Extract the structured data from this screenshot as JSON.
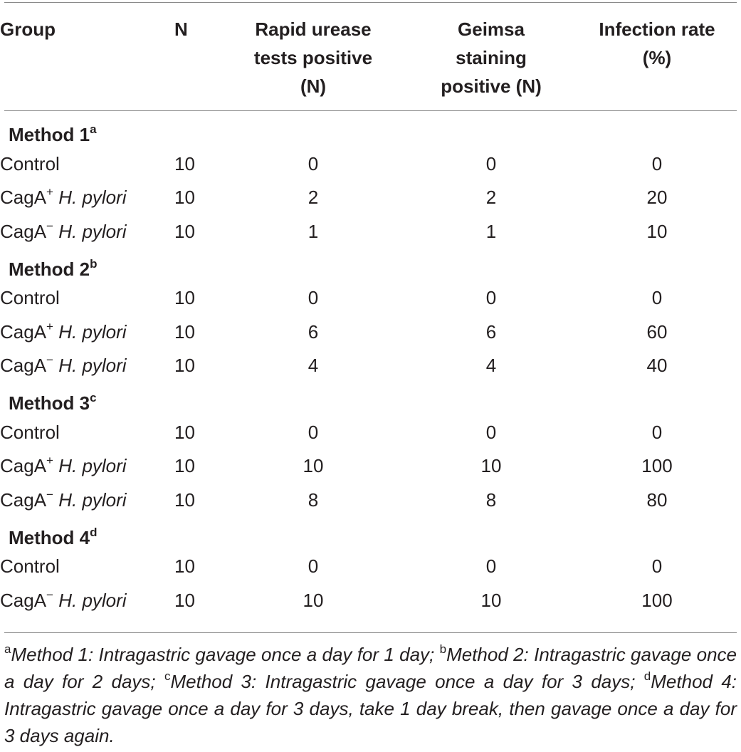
{
  "table": {
    "headers": {
      "group": "Group",
      "n": "N",
      "urease": [
        "Rapid urease",
        "tests positive",
        "(N)"
      ],
      "geimsa": [
        "Geimsa",
        "staining",
        "positive (N)"
      ],
      "rate": [
        "Infection rate",
        "(%)"
      ]
    },
    "sections": [
      {
        "title": "Method 1",
        "sup": "a",
        "rows": [
          {
            "group_base": "Control",
            "group_sup": "",
            "group_strain": "",
            "n": "10",
            "urease": "0",
            "geimsa": "0",
            "rate": "0"
          },
          {
            "group_base": "CagA",
            "group_sup": "+",
            "group_strain": "H. pylori",
            "n": "10",
            "urease": "2",
            "geimsa": "2",
            "rate": "20"
          },
          {
            "group_base": "CagA",
            "group_sup": "−",
            "group_strain": "H. pylori",
            "n": "10",
            "urease": "1",
            "geimsa": "1",
            "rate": "10"
          }
        ]
      },
      {
        "title": "Method 2",
        "sup": "b",
        "rows": [
          {
            "group_base": "Control",
            "group_sup": "",
            "group_strain": "",
            "n": "10",
            "urease": "0",
            "geimsa": "0",
            "rate": "0"
          },
          {
            "group_base": "CagA",
            "group_sup": "+",
            "group_strain": "H. pylori",
            "n": "10",
            "urease": "6",
            "geimsa": "6",
            "rate": "60"
          },
          {
            "group_base": "CagA",
            "group_sup": "−",
            "group_strain": "H. pylori",
            "n": "10",
            "urease": "4",
            "geimsa": "4",
            "rate": "40"
          }
        ]
      },
      {
        "title": "Method 3",
        "sup": "c",
        "rows": [
          {
            "group_base": "Control",
            "group_sup": "",
            "group_strain": "",
            "n": "10",
            "urease": "0",
            "geimsa": "0",
            "rate": "0"
          },
          {
            "group_base": "CagA",
            "group_sup": "+",
            "group_strain": "H. pylori",
            "n": "10",
            "urease": "10",
            "geimsa": "10",
            "rate": "100"
          },
          {
            "group_base": "CagA",
            "group_sup": "−",
            "group_strain": "H. pylori",
            "n": "10",
            "urease": "8",
            "geimsa": "8",
            "rate": "80"
          }
        ]
      },
      {
        "title": "Method 4",
        "sup": "d",
        "rows": [
          {
            "group_base": "Control",
            "group_sup": "",
            "group_strain": "",
            "n": "10",
            "urease": "0",
            "geimsa": "0",
            "rate": "0"
          },
          {
            "group_base": "CagA",
            "group_sup": "−",
            "group_strain": "H. pylori",
            "n": "10",
            "urease": "10",
            "geimsa": "10",
            "rate": "100"
          }
        ]
      }
    ]
  },
  "footnotes": [
    {
      "mark": "a",
      "text": "Method 1: Intragastric gavage once a day for 1 day; "
    },
    {
      "mark": "b",
      "text": "Method 2: Intragastric gavage once a day for 2 days; "
    },
    {
      "mark": "c",
      "text": "Method 3: Intragastric gavage once a day for 3 days; "
    },
    {
      "mark": "d",
      "text": "Method 4: Intragastric gavage once a day for 3 days, take 1 day break, then gavage once a day for 3 days again."
    }
  ]
}
